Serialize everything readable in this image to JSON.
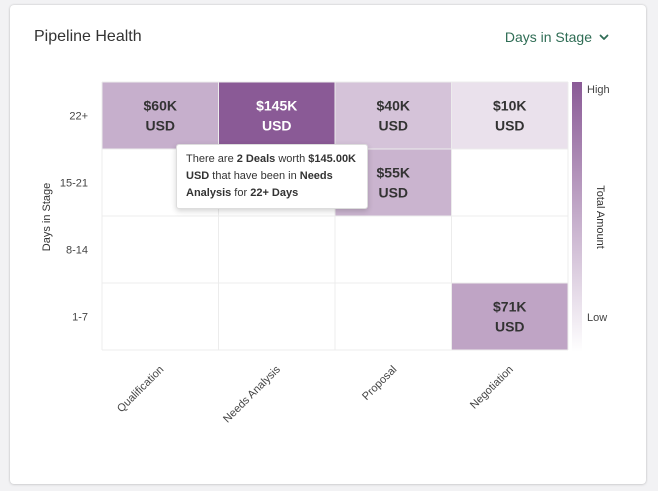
{
  "widget": {
    "title": "Pipeline Health",
    "dropdown_label": "Days in Stage",
    "dropdown_icon": "chevron-down-icon"
  },
  "tooltip": {
    "p1": "There are ",
    "deals": "2 Deals",
    "p2": " worth ",
    "amount": "$145.00K USD",
    "p3": " that have been in ",
    "stage": "Needs Analysis",
    "p4": " for ",
    "days": "22+ Days"
  },
  "colors": {
    "scale_low": "#ffffff",
    "scale_high": "#8a5a96",
    "text_dark": "#333333",
    "text_light": "#ffffff",
    "accent": "#2f6d55"
  },
  "chart_data": {
    "type": "heatmap",
    "x_categories": [
      "Qualification",
      "Needs Analysis",
      "Proposal",
      "Negotiation"
    ],
    "y_categories": [
      "22+",
      "15-21",
      "8-14",
      "1-7"
    ],
    "ylabel": "Days in Stage",
    "colorbar": {
      "title": "Total Amount",
      "high_label": "High",
      "low_label": "Low"
    },
    "cells": [
      {
        "x": "Qualification",
        "y": "22+",
        "value": 60,
        "line1": "$60K",
        "line2": "USD"
      },
      {
        "x": "Needs Analysis",
        "y": "22+",
        "value": 145,
        "line1": "$145K",
        "line2": "USD"
      },
      {
        "x": "Proposal",
        "y": "22+",
        "value": 40,
        "line1": "$40K",
        "line2": "USD"
      },
      {
        "x": "Negotiation",
        "y": "22+",
        "value": 10,
        "line1": "$10K",
        "line2": "USD"
      },
      {
        "x": "Proposal",
        "y": "15-21",
        "value": 55,
        "line1": "$55K",
        "line2": "USD"
      },
      {
        "x": "Negotiation",
        "y": "1-7",
        "value": 71,
        "line1": "$71K",
        "line2": "USD"
      }
    ],
    "value_max": 145
  }
}
